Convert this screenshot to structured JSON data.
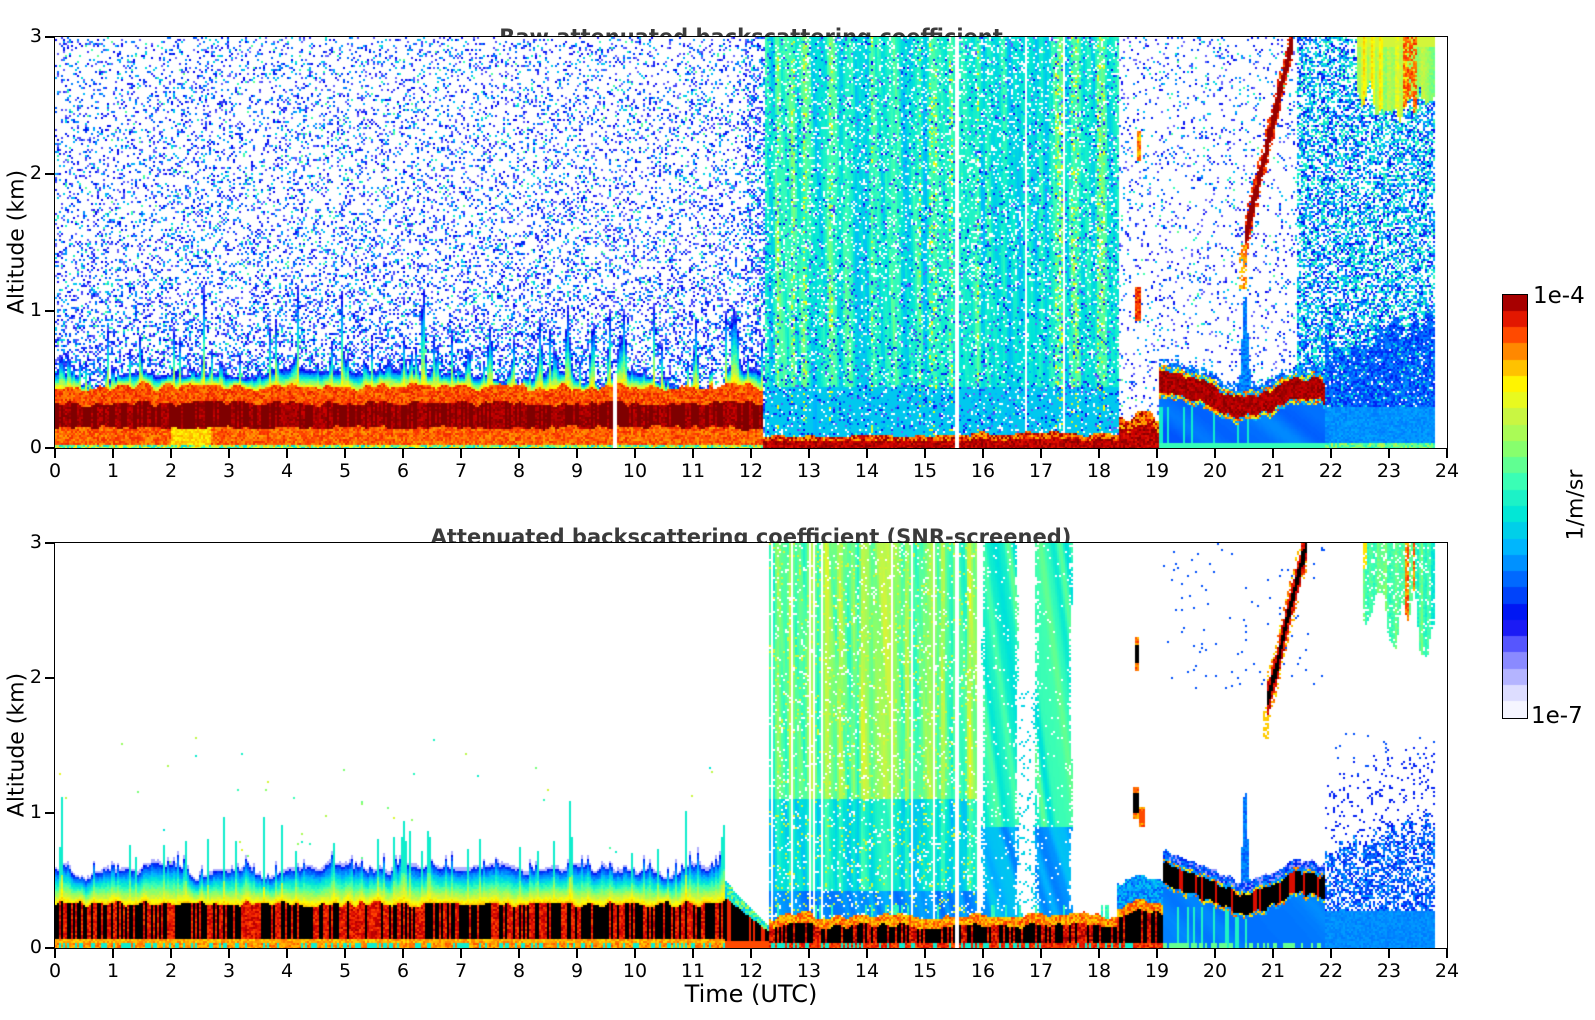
{
  "figure": {
    "background": "#ffffff",
    "frame_color": "#000000"
  },
  "axes": {
    "x_label": "Time (UTC)",
    "y_label": "Altitude (km)",
    "x_range": [
      0,
      24
    ],
    "y_range": [
      0,
      3
    ],
    "x_ticks": [
      0,
      1,
      2,
      3,
      4,
      5,
      6,
      7,
      8,
      9,
      10,
      11,
      12,
      13,
      14,
      15,
      16,
      17,
      18,
      19,
      20,
      21,
      22,
      23,
      24
    ],
    "y_ticks": [
      0,
      1,
      2,
      3
    ]
  },
  "colorbar": {
    "top_label": "1e-4",
    "bottom_label": "1e-7",
    "unit": "1/m/sr",
    "levels": 26,
    "over_color": "#000000",
    "stops": [
      [
        0.0,
        "#ffffff"
      ],
      [
        0.05,
        "#e6e6ff"
      ],
      [
        0.11,
        "#a8a8ff"
      ],
      [
        0.17,
        "#5a5aff"
      ],
      [
        0.23,
        "#0000f0"
      ],
      [
        0.32,
        "#0064ff"
      ],
      [
        0.4,
        "#00b4ff"
      ],
      [
        0.48,
        "#00e6d7"
      ],
      [
        0.56,
        "#3cffb4"
      ],
      [
        0.64,
        "#8cff69"
      ],
      [
        0.72,
        "#d2f53c"
      ],
      [
        0.78,
        "#ffff00"
      ],
      [
        0.85,
        "#ffa500"
      ],
      [
        0.91,
        "#ff3c00"
      ],
      [
        0.96,
        "#d00000"
      ],
      [
        1.0,
        "#7f0000"
      ]
    ]
  },
  "chart_data": [
    {
      "id": "raw",
      "type": "heatmap",
      "title": "Raw attenuated backscattering coefficient",
      "x_label": "Time (UTC)",
      "y_label": "Altitude (km)",
      "x_range": [
        0,
        24
      ],
      "y_range": [
        0,
        3
      ],
      "value_scale": "log",
      "value_range": [
        "1e-7",
        "1e-4"
      ],
      "unit": "1/m/sr",
      "data_end_t": 23.78,
      "description": "Ceilometer raw attenuated backscatter: speckled blue/cyan noise everywhere; aerosol boundary layer below ~0.6 km (dark red) from 0-12 UTC; precipitation streaks (green/cyan columns) 12.2-18.3 UTC; elevated dark-red layer ~0.3-0.5 km 19-22 UTC; falling virga streak rising from 1.5 km at 20.5 UTC to 3 km at 21.3 UTC; cloud plume at top right 22.5-23.7 UTC; dense blue noise right of 21.4 UTC; white data gap at 15.55 UTC; data end 23.78 UTC.",
      "features": {
        "data_gap_t": 15.55,
        "aerosol_layer": {
          "t": [
            0,
            12.2
          ],
          "gap_t": 9.65,
          "top_mean": 0.42,
          "core_top": 0.3,
          "dark_base": 0.13
        },
        "surface_layer": {
          "t": [
            12.2,
            19.05
          ],
          "thickness": 0.07
        },
        "rain_stripes": {
          "t": [
            12.25,
            18.35
          ],
          "gap_frac_early": 0.1,
          "gap_frac_late": 0.16
        },
        "elevated_band": {
          "t": [
            19.05,
            21.9
          ],
          "center": 0.34,
          "halfwidth": 0.065
        },
        "virga_streak": {
          "t": [
            20.5,
            21.35
          ],
          "alt": [
            1.5,
            3.0
          ]
        },
        "blobs": [
          {
            "t": [
              18.62,
              18.73
            ],
            "alt": [
              0.92,
              1.18
            ],
            "v": 0.85
          },
          {
            "t": [
              18.66,
              18.74
            ],
            "alt": [
              2.1,
              2.32
            ],
            "v": 0.8
          }
        ],
        "cloud_plume": {
          "t": [
            22.45,
            23.78
          ],
          "alt_bottom": 2.45
        },
        "blue_zone": {
          "t": [
            21.9,
            23.78
          ]
        },
        "noise": {
          "sparse_t": [
            18.35,
            21.4
          ],
          "dense_right_t": 21.4,
          "storm_t": [
            11.9,
            18.6
          ]
        }
      }
    },
    {
      "id": "screened",
      "type": "heatmap",
      "title": "Attenuated backscattering coefficient (SNR-screened)",
      "x_label": "Time (UTC)",
      "y_label": "Altitude (km)",
      "x_range": [
        0,
        24
      ],
      "y_range": [
        0,
        3
      ],
      "value_scale": "log",
      "value_range": [
        "1e-7",
        "1e-4"
      ],
      "unit": "1/m/sr",
      "data_end_t": 23.78,
      "description": "Same scene after SNR screening: white background; boundary-layer aerosol 0-11.6 UTC with black (over-range) core below 0.35 km; green/cyan precipitation curtains 12.3-15.9 UTC with thin white gaps; two broad cyan columns 16.0-16.6 and 16.9-17.5 UTC; black-cored wavy layer 19.1-21.9 UTC with blue outline; narrow blue spike to 1.25 km at 20.5 UTC; black/red virga streak 20.9-21.6 UTC climbing to 3 km; blue drizzle zone after 21.9 UTC; cyan-green cloud plume at top right; white data gap at 15.55 UTC.",
      "features": {
        "data_gap_t": 15.55,
        "aerosol_layer": {
          "t": [
            0,
            11.55
          ],
          "top_mean": 0.5,
          "core_top": 0.3,
          "transition_end": 12.3
        },
        "surface_layer": {
          "t": [
            12.3,
            19.1
          ],
          "thickness": 0.14
        },
        "rain_stripes": {
          "t": [
            12.3,
            15.92
          ],
          "gap_frac": 0.14
        },
        "columns": [
          {
            "t": [
              15.97,
              16.62
            ]
          },
          {
            "t": [
              16.88,
              17.55
            ]
          }
        ],
        "elevated_band": {
          "t": [
            19.1,
            21.9
          ],
          "center": 0.38,
          "halfwidth": 0.06
        },
        "spike": {
          "t": 20.52,
          "top": 1.25
        },
        "virga_streak": {
          "t": [
            20.88,
            21.58
          ],
          "alt": [
            1.78,
            3.0
          ]
        },
        "blobs": [
          {
            "t": [
              18.58,
              18.7
            ],
            "alt": [
              0.95,
              1.2
            ],
            "v": 1.05
          },
          {
            "t": [
              18.7,
              18.78
            ],
            "alt": [
              0.9,
              1.05
            ],
            "v": 0.9
          },
          {
            "t": [
              18.62,
              18.7
            ],
            "alt": [
              2.05,
              2.3
            ],
            "v": 1.05
          }
        ],
        "blue_zone": {
          "t": [
            21.9,
            23.78
          ]
        },
        "cloud_plume": {
          "t": [
            22.55,
            23.78
          ],
          "alt_bottom": 2.15
        }
      }
    }
  ]
}
